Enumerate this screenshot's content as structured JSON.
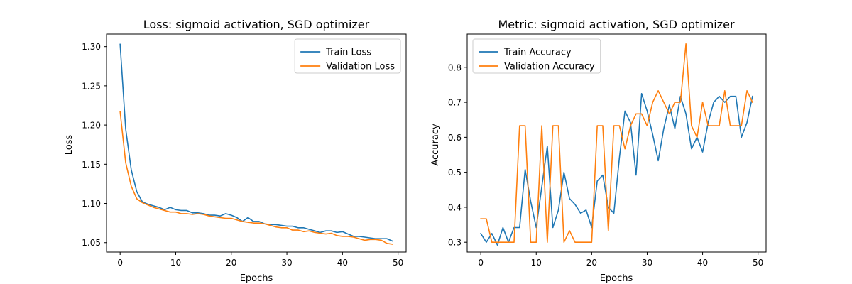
{
  "colors": {
    "train": "#1f77b4",
    "validation": "#ff7f0e"
  },
  "chart_data": [
    {
      "type": "line",
      "title": "Loss: sigmoid activation, SGD optimizer",
      "xlabel": "Epochs",
      "ylabel": "Loss",
      "xlim": [
        -2.45,
        51.45
      ],
      "ylim": [
        1.038,
        1.316
      ],
      "xticks": [
        0,
        10,
        20,
        30,
        40,
        50
      ],
      "xtick_labels": [
        "0",
        "10",
        "20",
        "30",
        "40",
        "50"
      ],
      "yticks": [
        1.05,
        1.1,
        1.15,
        1.2,
        1.25,
        1.3
      ],
      "ytick_labels": [
        "1.05",
        "1.10",
        "1.15",
        "1.20",
        "1.25",
        "1.30"
      ],
      "grid": false,
      "legend_position": "top-right",
      "series": [
        {
          "name": "Train Loss",
          "color_key": "train",
          "x": [
            0,
            1,
            2,
            3,
            4,
            5,
            6,
            7,
            8,
            9,
            10,
            11,
            12,
            13,
            14,
            15,
            16,
            17,
            18,
            19,
            20,
            21,
            22,
            23,
            24,
            25,
            26,
            27,
            28,
            29,
            30,
            31,
            32,
            33,
            34,
            35,
            36,
            37,
            38,
            39,
            40,
            41,
            42,
            43,
            44,
            45,
            46,
            47,
            48,
            49
          ],
          "values": [
            1.303,
            1.195,
            1.143,
            1.115,
            1.102,
            1.099,
            1.097,
            1.095,
            1.092,
            1.095,
            1.092,
            1.091,
            1.091,
            1.088,
            1.088,
            1.087,
            1.085,
            1.085,
            1.084,
            1.087,
            1.085,
            1.082,
            1.077,
            1.082,
            1.077,
            1.077,
            1.074,
            1.073,
            1.073,
            1.072,
            1.071,
            1.071,
            1.069,
            1.069,
            1.067,
            1.065,
            1.063,
            1.065,
            1.065,
            1.063,
            1.064,
            1.061,
            1.058,
            1.058,
            1.057,
            1.056,
            1.055,
            1.055,
            1.055,
            1.052
          ]
        },
        {
          "name": "Validation Loss",
          "color_key": "validation",
          "x": [
            0,
            1,
            2,
            3,
            4,
            5,
            6,
            7,
            8,
            9,
            10,
            11,
            12,
            13,
            14,
            15,
            16,
            17,
            18,
            19,
            20,
            21,
            22,
            23,
            24,
            25,
            26,
            27,
            28,
            29,
            30,
            31,
            32,
            33,
            34,
            35,
            36,
            37,
            38,
            39,
            40,
            41,
            42,
            43,
            44,
            45,
            46,
            47,
            48,
            49
          ],
          "values": [
            1.217,
            1.152,
            1.122,
            1.106,
            1.101,
            1.098,
            1.095,
            1.093,
            1.091,
            1.089,
            1.089,
            1.087,
            1.087,
            1.086,
            1.087,
            1.086,
            1.084,
            1.083,
            1.082,
            1.081,
            1.081,
            1.079,
            1.077,
            1.076,
            1.075,
            1.075,
            1.074,
            1.072,
            1.07,
            1.069,
            1.069,
            1.066,
            1.066,
            1.064,
            1.065,
            1.063,
            1.062,
            1.061,
            1.062,
            1.059,
            1.058,
            1.058,
            1.057,
            1.055,
            1.053,
            1.054,
            1.054,
            1.053,
            1.049,
            1.048
          ]
        }
      ]
    },
    {
      "type": "line",
      "title": "Metric: sigmoid activation, SGD optimizer",
      "xlabel": "Epochs",
      "ylabel": "Accuracy",
      "xlim": [
        -2.45,
        51.45
      ],
      "ylim": [
        0.272,
        0.895
      ],
      "xticks": [
        0,
        10,
        20,
        30,
        40,
        50
      ],
      "xtick_labels": [
        "0",
        "10",
        "20",
        "30",
        "40",
        "50"
      ],
      "yticks": [
        0.3,
        0.4,
        0.5,
        0.6,
        0.7,
        0.8
      ],
      "ytick_labels": [
        "0.3",
        "0.4",
        "0.5",
        "0.6",
        "0.7",
        "0.8"
      ],
      "grid": false,
      "legend_position": "top-left",
      "series": [
        {
          "name": "Train Accuracy",
          "color_key": "train",
          "x": [
            0,
            1,
            2,
            3,
            4,
            5,
            6,
            7,
            8,
            9,
            10,
            11,
            12,
            13,
            14,
            15,
            16,
            17,
            18,
            19,
            20,
            21,
            22,
            23,
            24,
            25,
            26,
            27,
            28,
            29,
            30,
            31,
            32,
            33,
            34,
            35,
            36,
            37,
            38,
            39,
            40,
            41,
            42,
            43,
            44,
            45,
            46,
            47,
            48,
            49
          ],
          "values": [
            0.325,
            0.3,
            0.325,
            0.292,
            0.342,
            0.3,
            0.342,
            0.342,
            0.508,
            0.417,
            0.342,
            0.458,
            0.575,
            0.342,
            0.392,
            0.5,
            0.425,
            0.408,
            0.383,
            0.392,
            0.342,
            0.475,
            0.492,
            0.4,
            0.383,
            0.542,
            0.675,
            0.642,
            0.492,
            0.725,
            0.675,
            0.608,
            0.533,
            0.625,
            0.692,
            0.625,
            0.717,
            0.667,
            0.567,
            0.6,
            0.558,
            0.642,
            0.7,
            0.717,
            0.7,
            0.717,
            0.717,
            0.6,
            0.642,
            0.717
          ]
        },
        {
          "name": "Validation Accuracy",
          "color_key": "validation",
          "x": [
            0,
            1,
            2,
            3,
            4,
            5,
            6,
            7,
            8,
            9,
            10,
            11,
            12,
            13,
            14,
            15,
            16,
            17,
            18,
            19,
            20,
            21,
            22,
            23,
            24,
            25,
            26,
            27,
            28,
            29,
            30,
            31,
            32,
            33,
            34,
            35,
            36,
            37,
            38,
            39,
            40,
            41,
            42,
            43,
            44,
            45,
            46,
            47,
            48,
            49
          ],
          "values": [
            0.367,
            0.367,
            0.3,
            0.3,
            0.3,
            0.3,
            0.3,
            0.633,
            0.633,
            0.3,
            0.3,
            0.633,
            0.3,
            0.633,
            0.633,
            0.3,
            0.333,
            0.3,
            0.3,
            0.3,
            0.3,
            0.633,
            0.633,
            0.333,
            0.633,
            0.633,
            0.567,
            0.633,
            0.667,
            0.667,
            0.633,
            0.7,
            0.733,
            0.7,
            0.667,
            0.7,
            0.7,
            0.867,
            0.633,
            0.6,
            0.7,
            0.633,
            0.633,
            0.633,
            0.733,
            0.633,
            0.633,
            0.633,
            0.733,
            0.7
          ]
        }
      ]
    }
  ]
}
